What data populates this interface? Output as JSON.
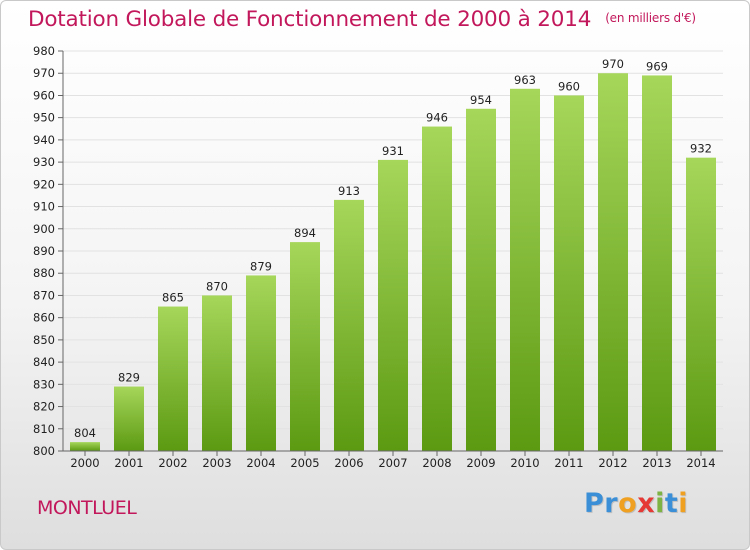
{
  "chart_data": {
    "type": "bar",
    "title": "Dotation Globale de Fonctionnement de 2000 à 2014",
    "unit_note": "(en milliers d'€)",
    "categories": [
      "2000",
      "2001",
      "2002",
      "2003",
      "2004",
      "2005",
      "2006",
      "2007",
      "2008",
      "2009",
      "2010",
      "2011",
      "2012",
      "2013",
      "2014"
    ],
    "values": [
      804,
      829,
      865,
      870,
      879,
      894,
      913,
      931,
      946,
      954,
      963,
      960,
      970,
      969,
      932
    ],
    "ylim": [
      800,
      980
    ],
    "yticks": [
      800,
      810,
      820,
      830,
      840,
      850,
      860,
      870,
      880,
      890,
      900,
      910,
      920,
      930,
      940,
      950,
      960,
      970,
      980
    ],
    "grid": true,
    "bar_color_top": "#a6d65a",
    "bar_color_bottom": "#5c9a12"
  },
  "footer": {
    "commune": "MONTLUEL",
    "logo_letters": [
      {
        "ch": "P",
        "color": "#3a8fd6"
      },
      {
        "ch": "r",
        "color": "#3a8fd6"
      },
      {
        "ch": "o",
        "color": "#f0a020"
      },
      {
        "ch": "x",
        "color": "#e53935"
      },
      {
        "ch": "i",
        "color": "#7cb342"
      },
      {
        "ch": "t",
        "color": "#3a8fd6"
      },
      {
        "ch": "i",
        "color": "#f0a020"
      }
    ]
  }
}
